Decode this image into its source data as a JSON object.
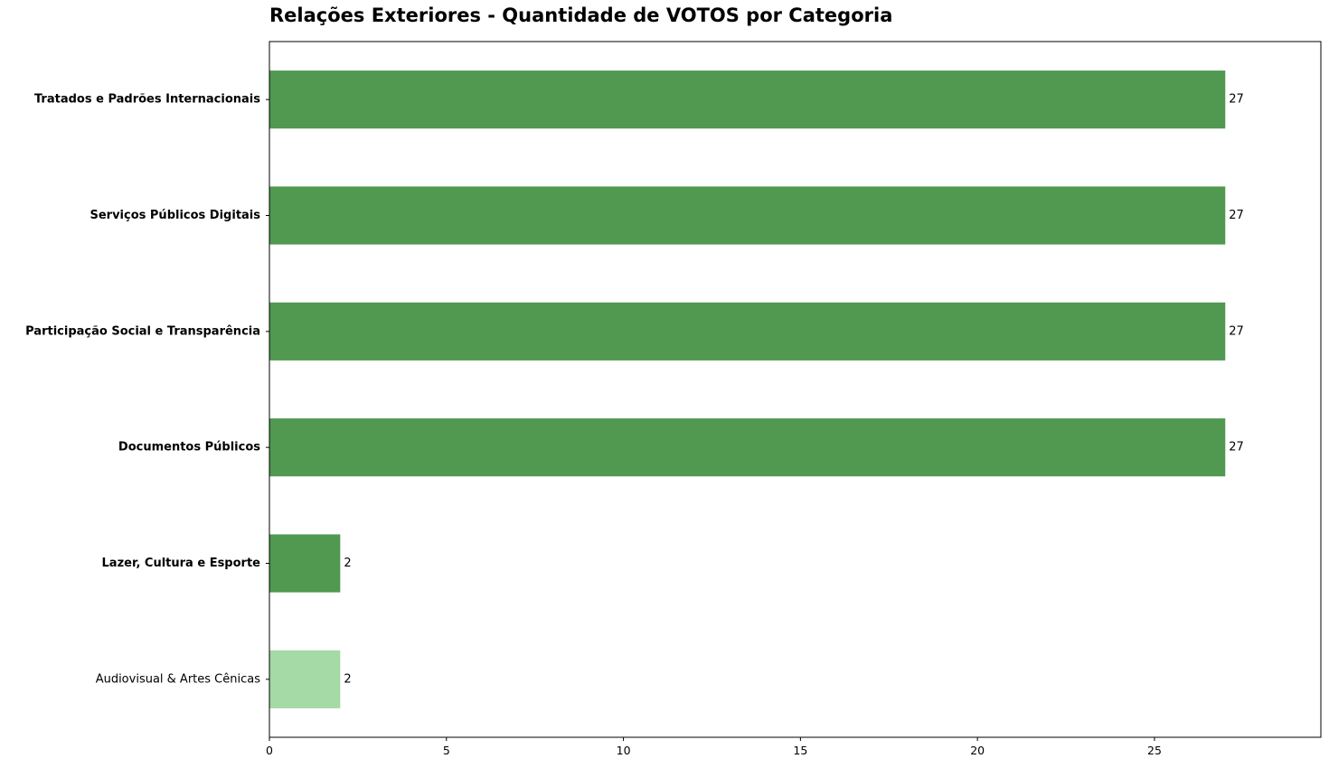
{
  "chart_data": {
    "type": "bar",
    "orientation": "horizontal",
    "title": "Relações Exteriores - Quantidade de VOTOS por Categoria",
    "xlabel": "",
    "ylabel": "",
    "categories": [
      "Tratados e Padrões Internacionais",
      "Serviços Públicos Digitais",
      "Participação Social e Transparência",
      "Documentos Públicos",
      "Lazer, Cultura e Esporte",
      "Audiovisual & Artes Cênicas"
    ],
    "values": [
      27,
      27,
      27,
      27,
      2,
      2
    ],
    "value_labels": [
      "27",
      "27",
      "27",
      "27",
      "2",
      "2"
    ],
    "bold_categories": [
      true,
      true,
      true,
      true,
      true,
      false
    ],
    "bar_colors": [
      "#519851",
      "#519851",
      "#519851",
      "#519851",
      "#519851",
      "#a5d9a5"
    ],
    "xlim": [
      0,
      29.7
    ],
    "xticks": [
      0,
      5,
      10,
      15,
      20,
      25
    ],
    "xtick_labels": [
      "0",
      "5",
      "10",
      "15",
      "20",
      "25"
    ],
    "grid": false,
    "legend": "none"
  }
}
